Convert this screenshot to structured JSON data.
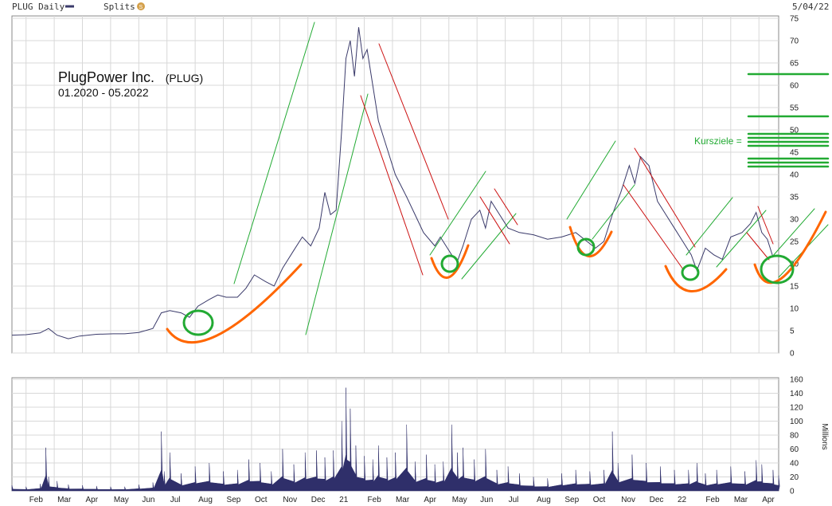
{
  "header": {
    "series_label": "PLUG Daily",
    "splits_label": "Splits",
    "splits_badge": "S",
    "date": "5/04/22"
  },
  "annotation": {
    "title": "PlugPower Inc.",
    "ticker": "(PLUG)",
    "range": "01.2020 - 05.2022",
    "targets_label": "Kursziele ="
  },
  "colors": {
    "price_line": "#3a3a6a",
    "volume_fill": "#2f2f6a",
    "grid": "#d8d8d8",
    "panel_bg": "#ffffff",
    "trend_green": "#22aa33",
    "trend_red": "#cc1111",
    "support_orange": "#ff6600",
    "circle_green": "#22aa33"
  },
  "chart_data": [
    {
      "type": "line",
      "name": "PLUG Daily",
      "ylim": [
        0,
        75
      ],
      "yticks": [
        0,
        5,
        10,
        15,
        20,
        25,
        30,
        35,
        40,
        45,
        50,
        55,
        60,
        65,
        70,
        75
      ],
      "xticks": [
        "Feb",
        "Mar",
        "Apr",
        "May",
        "Jun",
        "Jul",
        "Aug",
        "Sep",
        "Oct",
        "Nov",
        "Dec",
        "21",
        "Feb",
        "Mar",
        "Apr",
        "May",
        "Jun",
        "Jul",
        "Aug",
        "Sep",
        "Oct",
        "Nov",
        "Dec",
        "22",
        "Feb",
        "Mar",
        "Apr"
      ],
      "x_index_range": [
        0,
        27.2
      ],
      "points": [
        [
          0,
          4.0
        ],
        [
          0.5,
          4.1
        ],
        [
          1.0,
          4.5
        ],
        [
          1.3,
          5.5
        ],
        [
          1.6,
          4.0
        ],
        [
          2.0,
          3.2
        ],
        [
          2.4,
          3.8
        ],
        [
          3.0,
          4.2
        ],
        [
          3.6,
          4.3
        ],
        [
          4.0,
          4.3
        ],
        [
          4.5,
          4.6
        ],
        [
          5.0,
          5.5
        ],
        [
          5.3,
          9.0
        ],
        [
          5.6,
          9.5
        ],
        [
          6.0,
          9.0
        ],
        [
          6.3,
          8.0
        ],
        [
          6.6,
          10.5
        ],
        [
          7.0,
          12.0
        ],
        [
          7.3,
          13.0
        ],
        [
          7.6,
          12.5
        ],
        [
          8.0,
          12.5
        ],
        [
          8.3,
          14.5
        ],
        [
          8.6,
          17.5
        ],
        [
          9.0,
          16.0
        ],
        [
          9.3,
          15.0
        ],
        [
          9.6,
          19.0
        ],
        [
          10.0,
          23.0
        ],
        [
          10.3,
          26.0
        ],
        [
          10.6,
          24.0
        ],
        [
          10.9,
          28.0
        ],
        [
          11.1,
          36.0
        ],
        [
          11.3,
          31.0
        ],
        [
          11.5,
          32.0
        ],
        [
          11.7,
          50.0
        ],
        [
          11.85,
          66.0
        ],
        [
          12.0,
          70.0
        ],
        [
          12.15,
          62.0
        ],
        [
          12.3,
          73.0
        ],
        [
          12.45,
          66.0
        ],
        [
          12.6,
          68.0
        ],
        [
          12.8,
          60.0
        ],
        [
          13.0,
          52.0
        ],
        [
          13.3,
          46.0
        ],
        [
          13.6,
          40.0
        ],
        [
          14.0,
          35.0
        ],
        [
          14.3,
          31.0
        ],
        [
          14.6,
          27.0
        ],
        [
          15.0,
          24.0
        ],
        [
          15.2,
          26.0
        ],
        [
          15.4,
          24.0
        ],
        [
          15.6,
          22.0
        ],
        [
          15.8,
          20.5
        ],
        [
          16.0,
          24.0
        ],
        [
          16.3,
          30.0
        ],
        [
          16.6,
          32.0
        ],
        [
          16.8,
          28.0
        ],
        [
          17.0,
          34.0
        ],
        [
          17.3,
          31.0
        ],
        [
          17.6,
          28.0
        ],
        [
          18.0,
          27.0
        ],
        [
          18.5,
          26.5
        ],
        [
          19.0,
          25.5
        ],
        [
          19.5,
          26.0
        ],
        [
          20.0,
          27.0
        ],
        [
          20.4,
          25.0
        ],
        [
          20.7,
          23.5
        ],
        [
          21.0,
          25.0
        ],
        [
          21.3,
          31.0
        ],
        [
          21.6,
          36.0
        ],
        [
          21.9,
          42.0
        ],
        [
          22.1,
          38.0
        ],
        [
          22.3,
          44.0
        ],
        [
          22.6,
          42.0
        ],
        [
          22.9,
          34.0
        ],
        [
          23.2,
          31.0
        ],
        [
          23.5,
          28.0
        ],
        [
          23.8,
          25.0
        ],
        [
          24.1,
          22.0
        ],
        [
          24.3,
          18.5
        ],
        [
          24.6,
          23.5
        ],
        [
          24.9,
          22.0
        ],
        [
          25.2,
          21.0
        ],
        [
          25.5,
          26.0
        ],
        [
          25.9,
          27.0
        ],
        [
          26.2,
          29.0
        ],
        [
          26.4,
          31.5
        ],
        [
          26.6,
          27.0
        ],
        [
          26.8,
          25.5
        ],
        [
          27.0,
          21.5
        ],
        [
          27.2,
          22.0
        ]
      ]
    },
    {
      "type": "bar",
      "name": "Volume",
      "ylabel": "Millions",
      "ylim": [
        0,
        160
      ],
      "yticks": [
        0,
        20,
        40,
        60,
        80,
        100,
        120,
        140,
        160
      ],
      "x_index_range": [
        0,
        27.2
      ],
      "points": [
        [
          0,
          8
        ],
        [
          0.5,
          6
        ],
        [
          1.0,
          10
        ],
        [
          1.2,
          62
        ],
        [
          1.3,
          20
        ],
        [
          1.6,
          14
        ],
        [
          2.0,
          9
        ],
        [
          2.5,
          8
        ],
        [
          3.0,
          7
        ],
        [
          3.5,
          6
        ],
        [
          4.0,
          6
        ],
        [
          4.5,
          9
        ],
        [
          5.0,
          12
        ],
        [
          5.3,
          85
        ],
        [
          5.4,
          28
        ],
        [
          5.6,
          55
        ],
        [
          6.0,
          25
        ],
        [
          6.5,
          35
        ],
        [
          7.0,
          40
        ],
        [
          7.5,
          28
        ],
        [
          8.0,
          30
        ],
        [
          8.4,
          45
        ],
        [
          8.8,
          40
        ],
        [
          9.2,
          28
        ],
        [
          9.6,
          60
        ],
        [
          10.0,
          38
        ],
        [
          10.4,
          55
        ],
        [
          10.8,
          58
        ],
        [
          11.1,
          48
        ],
        [
          11.4,
          58
        ],
        [
          11.7,
          100
        ],
        [
          11.85,
          148
        ],
        [
          12.0,
          118
        ],
        [
          12.2,
          65
        ],
        [
          12.5,
          50
        ],
        [
          12.8,
          45
        ],
        [
          13.0,
          65
        ],
        [
          13.3,
          48
        ],
        [
          13.6,
          55
        ],
        [
          14.0,
          95
        ],
        [
          14.3,
          42
        ],
        [
          14.7,
          52
        ],
        [
          15.0,
          38
        ],
        [
          15.3,
          42
        ],
        [
          15.6,
          95
        ],
        [
          15.8,
          55
        ],
        [
          16.0,
          62
        ],
        [
          16.4,
          45
        ],
        [
          16.8,
          60
        ],
        [
          17.2,
          30
        ],
        [
          17.6,
          35
        ],
        [
          18.0,
          25
        ],
        [
          18.5,
          20
        ],
        [
          19.0,
          18
        ],
        [
          19.5,
          25
        ],
        [
          20.0,
          30
        ],
        [
          20.5,
          28
        ],
        [
          21.0,
          30
        ],
        [
          21.3,
          85
        ],
        [
          21.5,
          40
        ],
        [
          22.0,
          52
        ],
        [
          22.5,
          40
        ],
        [
          23.0,
          35
        ],
        [
          23.5,
          30
        ],
        [
          24.0,
          30
        ],
        [
          24.3,
          40
        ],
        [
          24.6,
          25
        ],
        [
          25.0,
          30
        ],
        [
          25.5,
          35
        ],
        [
          26.0,
          28
        ],
        [
          26.4,
          44
        ],
        [
          26.6,
          38
        ],
        [
          27.0,
          30
        ],
        [
          27.2,
          22
        ]
      ]
    }
  ]
}
